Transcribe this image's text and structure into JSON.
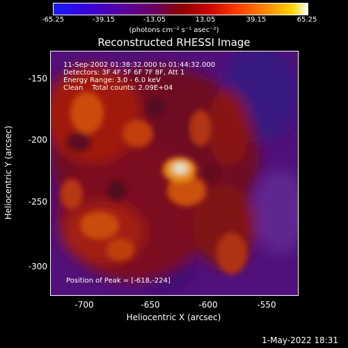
{
  "colorbar": {
    "ticks": [
      "-65.25",
      "-39.15",
      "-13.05",
      "13.05",
      "39.15",
      "65.25"
    ],
    "units": "(photons cm⁻² s⁻¹ asec⁻²)"
  },
  "title": "Reconstructed RHESSI Image",
  "annotations": {
    "time": "11-Sep-2002 01:38:32.000 to 01:44:32.000",
    "detectors": "Detectors: 3F 4F 5F 6F 7F 8F, Att 1",
    "energy": "Energy Range: 3.0 - 6.0 keV",
    "clean": "Clean    Total counts: 2.09E+04",
    "peak": "Position of Peak = [-618,-224]"
  },
  "axes": {
    "xlabel": "Heliocentric X (arcsec)",
    "ylabel": "Heliocentric Y (arcsec)",
    "xticks": [
      "-700",
      "-650",
      "-600",
      "-550"
    ],
    "yticks": [
      "-150",
      "-200",
      "-250",
      "-300"
    ]
  },
  "footer": "1-May-2022 18:31"
}
